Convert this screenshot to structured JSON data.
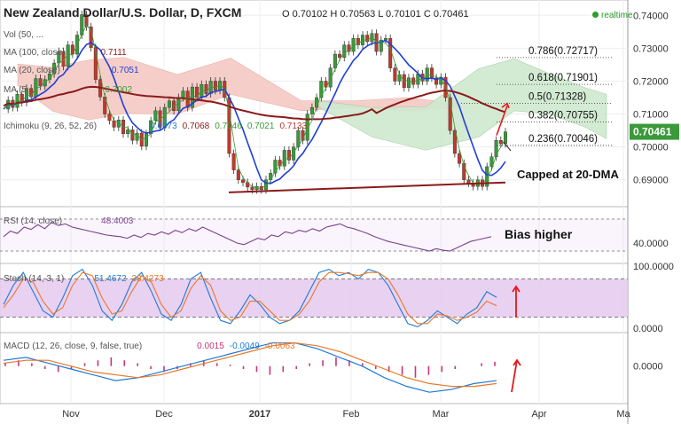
{
  "header": {
    "title": "New Zealand Dollar/U.S. Dollar, D, FXCM",
    "ohlc": "O 0.70102 H 0.70563 L 0.70101 C 0.70461",
    "realtime": "realtime"
  },
  "indicators": {
    "vol": "Vol (50, ...",
    "ma100": {
      "label": "MA (100, close)",
      "value": "0.7111"
    },
    "ma20": {
      "label": "MA (20, close)",
      "value": "0.7051"
    },
    "ma50": {
      "label": "MA (5...",
      "value": "0.7002"
    },
    "ichimoku": {
      "label": "Ichimoku (9, 26, 52, 26)",
      "values": [
        "0.6973",
        "0.7068",
        "0.7046",
        "0.7021",
        "0.7133"
      ]
    },
    "rsi": {
      "label": "RSI (14, close)",
      "value": "48.4003"
    },
    "stoch": {
      "label": "Stoch (14, 3, 1)",
      "values": [
        "51.4672",
        "38.4273"
      ]
    },
    "macd": {
      "label": "MACD (12, 26, close, 9, false, true)",
      "values": [
        "0.0015",
        "-0.0049",
        "-0.0063"
      ]
    }
  },
  "annotations": {
    "capped": "Capped at 20-DMA",
    "bias": "Bias higher"
  },
  "price_label": "0.70461",
  "colors": {
    "up": "#3a9a3a",
    "down": "#c0392b",
    "ma100": "#8b1a1a",
    "ma20": "#1f3fd6",
    "cloud_red": "#f6c9c4",
    "cloud_green": "#cfe8cf",
    "band": "#e5c9f0",
    "fib": "#333333",
    "rsi": "#7b3f8f",
    "stoch_k": "#1f7ad6",
    "stoch_d": "#e8782a",
    "macd_hist": "#c7357a"
  },
  "chart_data": [
    {
      "type": "candlestick",
      "title": "New Zealand Dollar/U.S. Dollar, D, FXCM",
      "x_ticks": [
        "Nov",
        "Dec",
        "2017",
        "Feb",
        "Mar",
        "Apr",
        "Ma"
      ],
      "y_ticks": [
        "0.74000",
        "0.73000",
        "0.72000",
        "0.71000",
        "0.70000",
        "0.69000"
      ],
      "ylim": [
        0.684,
        0.7425
      ],
      "close": [
        0.7115,
        0.7142,
        0.712,
        0.716,
        0.7135,
        0.7178,
        0.7152,
        0.7208,
        0.7185,
        0.7205,
        0.7222,
        0.7255,
        0.729,
        0.7245,
        0.731,
        0.7282,
        0.734,
        0.7402,
        0.7365,
        0.7302,
        0.7205,
        0.7152,
        0.71,
        0.708,
        0.706,
        0.7082,
        0.704,
        0.7052,
        0.702,
        0.7042,
        0.7002,
        0.704,
        0.708,
        0.711,
        0.706,
        0.712,
        0.714,
        0.711,
        0.715,
        0.717,
        0.712,
        0.7182,
        0.715,
        0.719,
        0.7162,
        0.72,
        0.7172,
        0.72,
        0.715,
        0.698,
        0.693,
        0.69,
        0.6892,
        0.6878,
        0.687,
        0.688,
        0.687,
        0.69,
        0.692,
        0.696,
        0.6942,
        0.699,
        0.696,
        0.7,
        0.705,
        0.702,
        0.71,
        0.712,
        0.715,
        0.72,
        0.7182,
        0.724,
        0.7282,
        0.7272,
        0.731,
        0.729,
        0.733,
        0.731,
        0.734,
        0.732,
        0.7345,
        0.729,
        0.7325,
        0.733,
        0.724,
        0.72,
        0.722,
        0.718,
        0.721,
        0.719,
        0.7222,
        0.72,
        0.724,
        0.721,
        0.719,
        0.7212,
        0.715,
        0.705,
        0.698,
        0.695,
        0.69,
        0.689,
        0.688,
        0.69,
        0.688,
        0.694,
        0.697,
        0.702,
        0.701,
        0.7046
      ],
      "ma20_end": 0.7051,
      "ma100_end": 0.7111,
      "fibonacci": [
        {
          "label": "0.786(0.72717)",
          "value": 0.72717
        },
        {
          "label": "0.618(0.71901)",
          "value": 0.71901
        },
        {
          "label": "0.5(0.71328)",
          "value": 0.71328
        },
        {
          "label": "0.382(0.70755)",
          "value": 0.70755
        },
        {
          "label": "0.236(0.70046)",
          "value": 0.70046
        }
      ],
      "support_line": [
        0.6862,
        0.6892
      ]
    },
    {
      "type": "line",
      "title": "RSI (14, close)",
      "y_ticks": [
        "40.0000"
      ],
      "ylim": [
        20,
        80
      ],
      "levels": [
        70,
        30
      ],
      "values": [
        48,
        55,
        52,
        60,
        57,
        63,
        58,
        66,
        62,
        64,
        60,
        58,
        56,
        54,
        52,
        50,
        49,
        48,
        46,
        50,
        47,
        52,
        50,
        54,
        51,
        56,
        53,
        58,
        55,
        60,
        56,
        52,
        48,
        44,
        40,
        38,
        42,
        46,
        44,
        50,
        48,
        54,
        52,
        56,
        54,
        58,
        55,
        60,
        62,
        64,
        60,
        58,
        55,
        52,
        48,
        45,
        42,
        40,
        38,
        36,
        34,
        32,
        30,
        33,
        31,
        30,
        34,
        38,
        42,
        44,
        46,
        48
      ]
    },
    {
      "type": "line",
      "title": "Stoch (14, 3, 1)",
      "y_ticks": [
        "100.0000",
        "0.0000"
      ],
      "ylim": [
        0,
        100
      ],
      "band": [
        80,
        20
      ],
      "series": [
        {
          "name": "%K",
          "values": [
            40,
            70,
            90,
            60,
            30,
            20,
            50,
            85,
            95,
            70,
            30,
            15,
            40,
            75,
            90,
            60,
            25,
            15,
            40,
            80,
            90,
            50,
            15,
            10,
            30,
            55,
            40,
            20,
            10,
            15,
            30,
            60,
            90,
            95,
            85,
            90,
            80,
            95,
            90,
            70,
            40,
            10,
            5,
            15,
            30,
            20,
            10,
            25,
            35,
            60,
            51
          ]
        },
        {
          "name": "%D",
          "values": [
            35,
            55,
            80,
            75,
            45,
            25,
            35,
            70,
            90,
            85,
            50,
            25,
            30,
            60,
            85,
            75,
            40,
            20,
            30,
            65,
            85,
            70,
            30,
            15,
            20,
            45,
            45,
            30,
            15,
            15,
            25,
            45,
            75,
            90,
            90,
            88,
            85,
            90,
            90,
            80,
            55,
            25,
            10,
            10,
            25,
            22,
            15,
            20,
            28,
            45,
            38
          ]
        }
      ]
    },
    {
      "type": "bar",
      "title": "MACD (12, 26, close, 9, false, true)",
      "y_ticks": [
        "0.0000"
      ],
      "ylim": [
        -0.012,
        0.01
      ],
      "series": [
        {
          "name": "Histogram",
          "values": [
            0.001,
            0.002,
            0.001,
            -0.001,
            -0.002,
            -0.001,
            0.001,
            0.002,
            0.003,
            0.002,
            0.001,
            -0.001,
            -0.002,
            -0.001,
            0.001,
            0.002,
            0.001,
            0.0005,
            -0.001,
            -0.002,
            -0.003,
            -0.002,
            -0.001,
            0.001,
            0.002,
            0.003,
            0.002,
            0.001,
            -0.001,
            -0.002,
            -0.003,
            -0.004,
            -0.003,
            -0.002,
            -0.001,
            0.0,
            0.001,
            0.0015
          ]
        },
        {
          "name": "MACD",
          "values": [
            0.002,
            0.003,
            0.001,
            -0.001,
            -0.003,
            -0.005,
            -0.004,
            -0.002,
            0.0,
            0.002,
            0.004,
            0.006,
            0.008,
            0.008,
            0.006,
            0.003,
            0.0,
            -0.004,
            -0.007,
            -0.009,
            -0.008,
            -0.006,
            -0.005
          ]
        },
        {
          "name": "Signal",
          "values": [
            0.001,
            0.002,
            0.002,
            0.0,
            -0.002,
            -0.003,
            -0.004,
            -0.003,
            -0.001,
            0.001,
            0.003,
            0.005,
            0.007,
            0.008,
            0.007,
            0.005,
            0.002,
            -0.001,
            -0.004,
            -0.006,
            -0.007,
            -0.007,
            -0.006
          ]
        }
      ]
    }
  ]
}
